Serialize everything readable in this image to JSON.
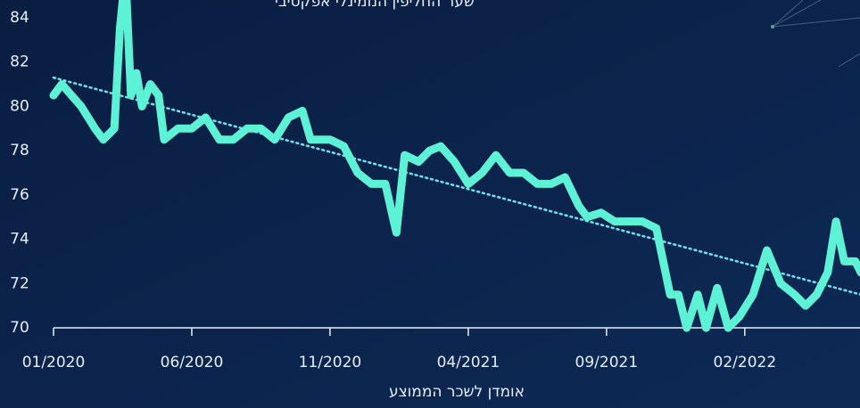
{
  "chart_data": {
    "type": "line",
    "title": "שער החליפין הנומינלי אפקטיבי",
    "x_label": "אומדן לשכר הממוצע",
    "color": "#5df2d6",
    "x": [
      0,
      0.3,
      1,
      1.5,
      1.8,
      2.2,
      2.4,
      2.6,
      2.8,
      3.0,
      3.2,
      3.5,
      3.8,
      4.0,
      4.5,
      5,
      5.5,
      6,
      6.5,
      7,
      7.5,
      8,
      8.5,
      9,
      9.3,
      10,
      10.5,
      11,
      11.5,
      12,
      12.4,
      12.7,
      13.2,
      13.6,
      14,
      14.5,
      15,
      15.5,
      16,
      16.5,
      17,
      17.5,
      18,
      18.5,
      19,
      19.3,
      19.8,
      20.3,
      20.8,
      21.3,
      21.8,
      22.3,
      22.6,
      22.9,
      23.3,
      23.6,
      24.0,
      24.4,
      24.8,
      25.3,
      25.8,
      26.3,
      26.8,
      27.2,
      27.6,
      28.0,
      28.3,
      28.6,
      29.0,
      29.2
    ],
    "values": [
      80.5,
      81,
      80,
      79,
      78.5,
      79,
      83.5,
      86,
      80.5,
      81.5,
      80,
      81,
      80.5,
      78.5,
      79,
      79,
      79.5,
      78.5,
      78.5,
      79,
      79,
      78.5,
      79.5,
      79.8,
      78.5,
      78.5,
      78.2,
      77,
      76.5,
      76.5,
      74.3,
      77.8,
      77.5,
      78,
      78.2,
      77.5,
      76.5,
      77,
      77.8,
      77,
      77,
      76.5,
      76.5,
      76.8,
      75.5,
      75,
      75.2,
      74.8,
      74.8,
      74.8,
      74.5,
      71.5,
      71.5,
      70,
      71.5,
      70,
      71.8,
      70,
      70.5,
      71.5,
      73.5,
      72,
      71.5,
      71,
      71.5,
      72.5,
      74.8,
      73,
      73,
      72.5
    ],
    "trendline": {
      "x": [
        0,
        29.2
      ],
      "values": [
        81.3,
        71.5
      ],
      "color": "#6fe3ea"
    },
    "xlim": [
      0,
      29.2
    ],
    "xticks": [
      {
        "value": 0,
        "label": "01/2020"
      },
      {
        "value": 5,
        "label": "06/2020"
      },
      {
        "value": 10,
        "label": "11/2020"
      },
      {
        "value": 15,
        "label": "04/2021"
      },
      {
        "value": 20,
        "label": "09/2021"
      },
      {
        "value": 25,
        "label": "02/2022"
      }
    ],
    "ylim": [
      70,
      84
    ],
    "yticks": [
      70,
      72,
      74,
      76,
      78,
      80,
      82,
      84
    ]
  }
}
